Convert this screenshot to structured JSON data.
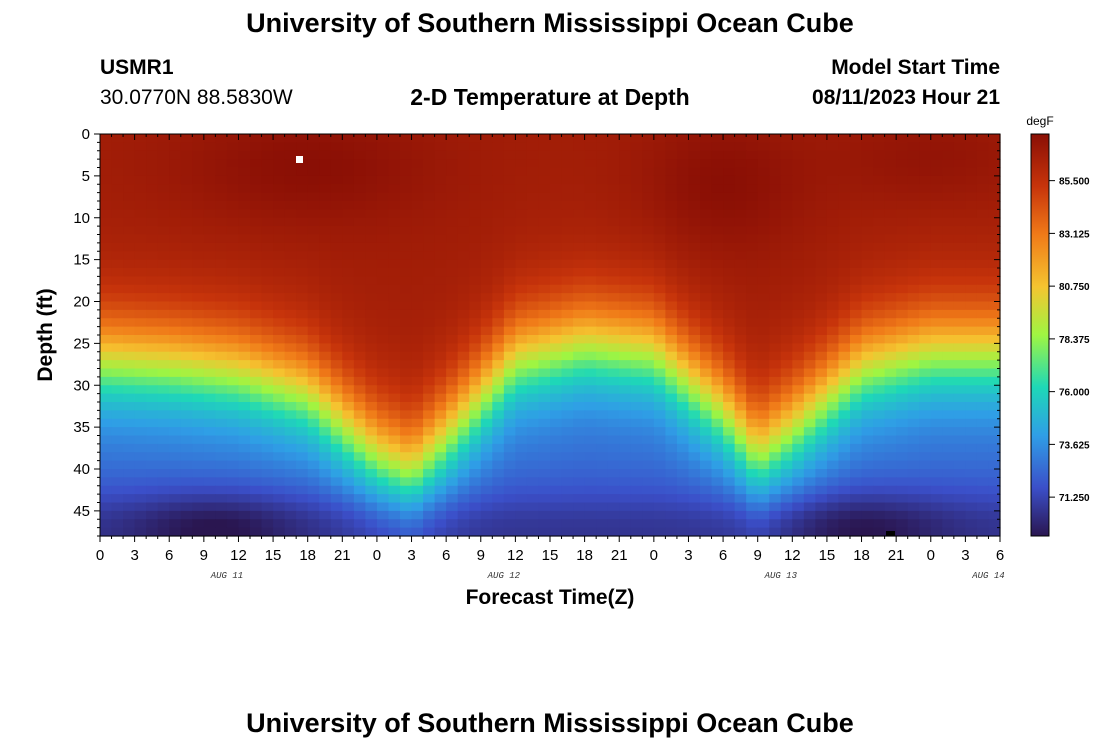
{
  "header": {
    "title": "University of Southern Mississippi Ocean Cube",
    "station_id": "USMR1",
    "station_coords": "30.0770N  88.5830W",
    "subtitle": "2-D Temperature at Depth",
    "model_start_label": "Model Start Time",
    "model_start_value": "08/11/2023 Hour 21"
  },
  "footer": {
    "title": "University of Southern Mississippi Ocean Cube"
  },
  "chart_data": {
    "type": "heatmap",
    "title": "2-D Temperature at Depth",
    "xlabel": "Forecast Time(Z)",
    "ylabel": "Depth (ft)",
    "colorbar_unit": "degF",
    "x_tick_labels": [
      "0",
      "3",
      "6",
      "9",
      "12",
      "15",
      "18",
      "21",
      "0",
      "3",
      "6",
      "9",
      "12",
      "15",
      "18",
      "21",
      "0",
      "3",
      "6",
      "9",
      "12",
      "15",
      "18",
      "21",
      "0",
      "3",
      "6"
    ],
    "date_labels": [
      "AUG 11",
      "AUG 12",
      "AUG 13",
      "AUG 14"
    ],
    "date_label_tick_index": [
      4,
      12,
      20,
      26
    ],
    "y_ticks": [
      0,
      5,
      10,
      15,
      20,
      25,
      30,
      35,
      40,
      45
    ],
    "ylim": [
      0,
      48
    ],
    "x_range_hours": [
      0,
      78
    ],
    "colorbar_ticks": [
      "85.500",
      "83.125",
      "80.750",
      "78.375",
      "76.000",
      "73.625",
      "71.250"
    ],
    "colorbar_range": [
      69.5,
      87.6
    ],
    "colormap": [
      "#2a1650",
      "#3b4fc9",
      "#2f9ee6",
      "#1ed8b7",
      "#9ff542",
      "#f5c430",
      "#f07a18",
      "#c7340b",
      "#8a0f05"
    ],
    "isotherm_depth_profile": {
      "description_hours": [
        0,
        6,
        12,
        18,
        24,
        27,
        30,
        36,
        42,
        48,
        54,
        57,
        60,
        66,
        72,
        78
      ],
      "depth_ft_of_80F": [
        27,
        27.5,
        28.5,
        31,
        38,
        40,
        36,
        27,
        25,
        26,
        33,
        38,
        35,
        28,
        26,
        26
      ]
    }
  }
}
